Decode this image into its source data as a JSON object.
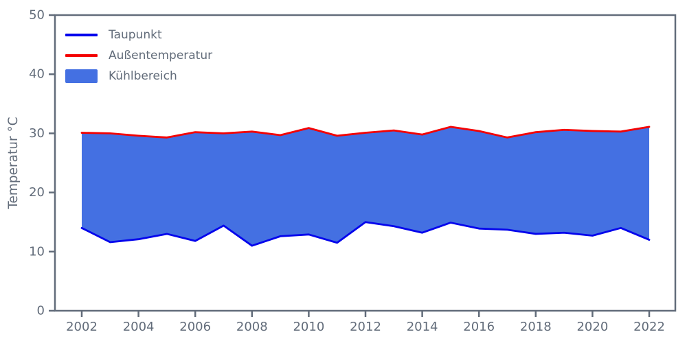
{
  "figure": {
    "ylabel": "Temperatur °C",
    "legend": [
      {
        "label": "Taupunkt",
        "swatch": "line",
        "color": "#0404ec"
      },
      {
        "label": "Außentemperatur",
        "swatch": "line",
        "color": "#f40000"
      },
      {
        "label": "Kühlbereich",
        "swatch": "patch",
        "color": "#4470e2"
      }
    ]
  },
  "chart_data": {
    "type": "area",
    "title": "",
    "xlabel": "",
    "ylabel": "Temperatur °C",
    "x": [
      2002,
      2003,
      2004,
      2005,
      2006,
      2007,
      2008,
      2009,
      2010,
      2011,
      2012,
      2013,
      2014,
      2015,
      2016,
      2017,
      2018,
      2019,
      2020,
      2021,
      2022
    ],
    "series": [
      {
        "name": "Taupunkt",
        "color": "#0404ec",
        "values": [
          14.0,
          11.6,
          12.1,
          13.0,
          11.8,
          14.4,
          11.0,
          12.6,
          12.9,
          11.5,
          15.0,
          14.3,
          13.2,
          14.9,
          13.9,
          13.7,
          13.0,
          13.2,
          12.7,
          14.0,
          12.0
        ]
      },
      {
        "name": "Außentemperatur",
        "color": "#f40000",
        "values": [
          30.1,
          30.0,
          29.6,
          29.3,
          30.2,
          30.0,
          30.3,
          29.7,
          30.9,
          29.6,
          30.1,
          30.5,
          29.8,
          31.1,
          30.4,
          29.3,
          30.2,
          30.6,
          30.4,
          30.3,
          31.1
        ]
      }
    ],
    "fill_between": {
      "name": "Kühlbereich",
      "color": "#4470e2",
      "lower": "Taupunkt",
      "upper": "Außentemperatur"
    },
    "ylim": [
      0,
      50
    ],
    "yticks": [
      0,
      10,
      20,
      30,
      40,
      50
    ],
    "xticks": [
      2002,
      2004,
      2006,
      2008,
      2010,
      2012,
      2014,
      2016,
      2018,
      2020,
      2022
    ],
    "grid": false,
    "legend_position": "upper-left",
    "axis_color": "#626c7a"
  }
}
